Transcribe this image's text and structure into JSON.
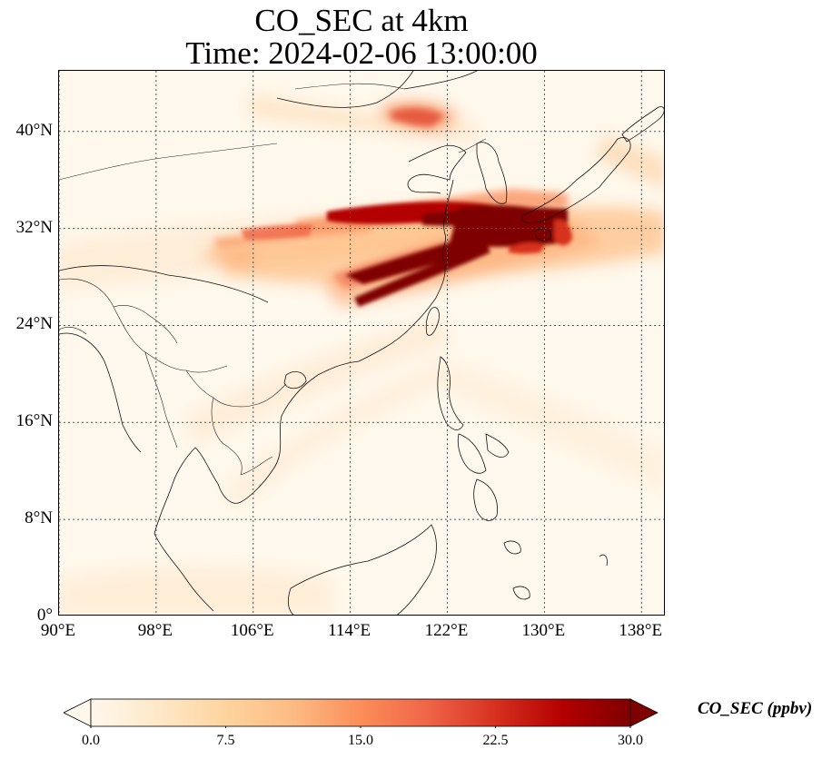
{
  "title_line1": "CO_SEC at 4km",
  "title_line2": "Time: 2024-02-06 13:00:00",
  "map": {
    "lon_range": [
      90,
      140
    ],
    "lat_range": [
      0,
      45
    ],
    "lat_ticks": [
      {
        "value": 0,
        "label": "0°"
      },
      {
        "value": 8,
        "label": "8°N"
      },
      {
        "value": 16,
        "label": "16°N"
      },
      {
        "value": 24,
        "label": "24°N"
      },
      {
        "value": 32,
        "label": "32°N"
      },
      {
        "value": 40,
        "label": "40°N"
      }
    ],
    "lon_ticks": [
      {
        "value": 90,
        "label": "90°E"
      },
      {
        "value": 98,
        "label": "98°E"
      },
      {
        "value": 106,
        "label": "106°E"
      },
      {
        "value": 114,
        "label": "114°E"
      },
      {
        "value": 122,
        "label": "122°E"
      },
      {
        "value": 130,
        "label": "130°E"
      },
      {
        "value": 138,
        "label": "138°E"
      }
    ],
    "gridlines": true,
    "colormap": "OrRd"
  },
  "colorbar": {
    "label": "CO_SEC (ppbv)",
    "min": 0.0,
    "max": 30.0,
    "ticks": [
      "0.0",
      "7.5",
      "15.0",
      "22.5",
      "30.0"
    ],
    "extend": "both",
    "colors": [
      "#fff7ec",
      "#fee8c8",
      "#fdd49e",
      "#fdbb84",
      "#fc8d59",
      "#ef6548",
      "#d7301f",
      "#b30000",
      "#7f0000"
    ]
  }
}
